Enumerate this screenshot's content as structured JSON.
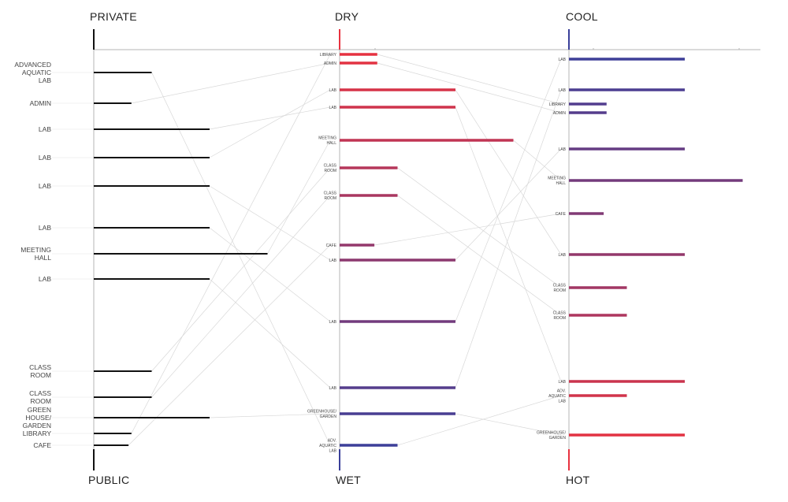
{
  "axes": [
    {
      "top": "PRIVATE",
      "bottom": "PUBLIC",
      "top_color": "#111111",
      "bottom_color": "#111111"
    },
    {
      "top": "DRY",
      "bottom": "WET",
      "top_color": "#e8323f",
      "bottom_color": "#3a3f9a"
    },
    {
      "top": "COOL",
      "bottom": "HOT",
      "top_color": "#3a3f9a",
      "bottom_color": "#e8323f"
    }
  ],
  "columns": [
    {
      "items": [
        {
          "label": [
            "ADVANCED",
            "AQUATIC",
            "LAB"
          ],
          "size": 1
        },
        {
          "label": [
            "ADMIN"
          ],
          "size": 0.65
        },
        {
          "label": [
            "LAB"
          ],
          "size": 2
        },
        {
          "label": [
            "LAB"
          ],
          "size": 2
        },
        {
          "label": [
            "LAB"
          ],
          "size": 2
        },
        {
          "label": [
            "LAB"
          ],
          "size": 2
        },
        {
          "label": [
            "MEETING",
            "HALL"
          ],
          "size": 3
        },
        {
          "label": [
            "LAB"
          ],
          "size": 2
        },
        {
          "label": [
            "CLASS",
            "ROOM"
          ],
          "size": 1
        },
        {
          "label": [
            "CLASS",
            "ROOM"
          ],
          "size": 1
        },
        {
          "label": [
            "GREEN",
            "HOUSE/",
            "GARDEN"
          ],
          "size": 2
        },
        {
          "label": [
            "LIBRARY"
          ],
          "size": 0.65
        },
        {
          "label": [
            "CAFE"
          ],
          "size": 0.6
        }
      ]
    },
    {
      "items": [
        {
          "label": [
            "LIBRARY"
          ],
          "size": 0.65
        },
        {
          "label": [
            "ADMIN"
          ],
          "size": 0.65
        },
        {
          "label": [
            "LAB"
          ],
          "size": 2
        },
        {
          "label": [
            "LAB"
          ],
          "size": 2
        },
        {
          "label": [
            "MEETING",
            "HALL"
          ],
          "size": 3
        },
        {
          "label": [
            "CLASS",
            "ROOM"
          ],
          "size": 1
        },
        {
          "label": [
            "CLASS",
            "ROOM"
          ],
          "size": 1
        },
        {
          "label": [
            "CAFE"
          ],
          "size": 0.6
        },
        {
          "label": [
            "LAB"
          ],
          "size": 2
        },
        {
          "label": [
            "LAB"
          ],
          "size": 2
        },
        {
          "label": [
            "LAB"
          ],
          "size": 2
        },
        {
          "label": [
            "GREENHOUSE/",
            "GARDEN"
          ],
          "size": 2
        },
        {
          "label": [
            "ADV.",
            "AQUATIC",
            "LAB"
          ],
          "size": 1
        }
      ]
    },
    {
      "items": [
        {
          "label": [
            "LAB"
          ],
          "size": 2
        },
        {
          "label": [
            "LAB"
          ],
          "size": 2
        },
        {
          "label": [
            "LIBRARY"
          ],
          "size": 0.65
        },
        {
          "label": [
            "ADMIN"
          ],
          "size": 0.65
        },
        {
          "label": [
            "LAB"
          ],
          "size": 2
        },
        {
          "label": [
            "MEETING",
            "HALL"
          ],
          "size": 3
        },
        {
          "label": [
            "CAFE"
          ],
          "size": 0.6
        },
        {
          "label": [
            "LAB"
          ],
          "size": 2
        },
        {
          "label": [
            "CLASS",
            "ROOM"
          ],
          "size": 1
        },
        {
          "label": [
            "CLASS",
            "ROOM"
          ],
          "size": 1
        },
        {
          "label": [
            "LAB"
          ],
          "size": 2
        },
        {
          "label": [
            "ADV.",
            "AQUATIC",
            "LAB"
          ],
          "size": 1
        },
        {
          "label": [
            "GREENHOUSE/",
            "GARDEN"
          ],
          "size": 2
        }
      ]
    }
  ],
  "links": [
    [
      [
        0,
        12
      ],
      [
        1,
        1
      ],
      [
        2,
        3
      ],
      [
        3,
        2
      ],
      [
        4,
        8
      ],
      [
        5,
        9
      ],
      [
        6,
        4
      ],
      [
        7,
        10
      ],
      [
        8,
        5
      ],
      [
        9,
        6
      ],
      [
        10,
        11
      ],
      [
        11,
        0
      ],
      [
        12,
        7
      ]
    ],
    [
      [
        0,
        2
      ],
      [
        1,
        3
      ],
      [
        2,
        7
      ],
      [
        3,
        10
      ],
      [
        4,
        5
      ],
      [
        5,
        8
      ],
      [
        6,
        9
      ],
      [
        7,
        6
      ],
      [
        8,
        4
      ],
      [
        9,
        0
      ],
      [
        10,
        1
      ],
      [
        11,
        12
      ],
      [
        12,
        11
      ]
    ]
  ],
  "colors": {
    "red": "#e8323f",
    "blue": "#3a3f9a",
    "axis": "#b5b5b5",
    "link": "#d8d8d8"
  }
}
